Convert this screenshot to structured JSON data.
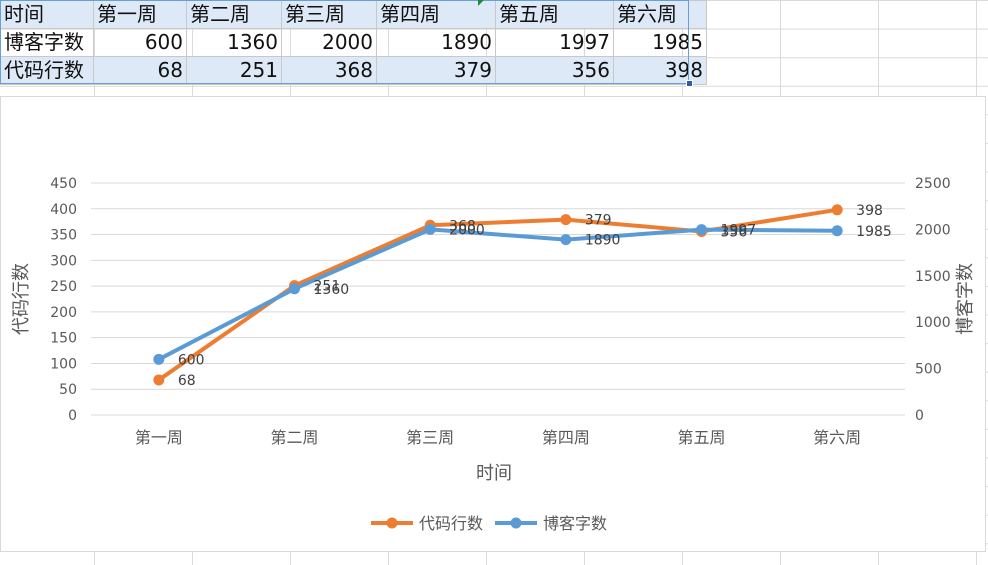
{
  "table": {
    "header": [
      "时间",
      "第一周",
      "第二周",
      "第三周",
      "第四周",
      "第五周",
      "第六周"
    ],
    "rows": [
      {
        "label": "博客字数",
        "values": [
          "600",
          "1360",
          "2000",
          "1890",
          "1997",
          "1985"
        ]
      },
      {
        "label": "代码行数",
        "values": [
          "68",
          "251",
          "368",
          "379",
          "356",
          "398"
        ]
      }
    ]
  },
  "colors": {
    "series_code": "#ed7d31",
    "series_blog": "#5b9bd5",
    "gridline": "#d9d9d9",
    "selection_fill": "#dde9f6"
  },
  "chart_data": {
    "type": "line",
    "categories": [
      "第一周",
      "第二周",
      "第三周",
      "第四周",
      "第五周",
      "第六周"
    ],
    "xlabel": "时间",
    "ylabel_left": "代码行数",
    "ylabel_right": "博客字数",
    "ylim_left": [
      0,
      450
    ],
    "yticks_left": [
      0,
      50,
      100,
      150,
      200,
      250,
      300,
      350,
      400,
      450
    ],
    "ylim_right": [
      0,
      2500
    ],
    "yticks_right": [
      0,
      500,
      1000,
      1500,
      2000,
      2500
    ],
    "grid": true,
    "legend_position": "bottom",
    "series": [
      {
        "name": "代码行数",
        "axis": "left",
        "values": [
          68,
          251,
          368,
          379,
          356,
          398
        ]
      },
      {
        "name": "博客字数",
        "axis": "right",
        "values": [
          600,
          1360,
          2000,
          1890,
          1997,
          1985
        ]
      }
    ]
  }
}
